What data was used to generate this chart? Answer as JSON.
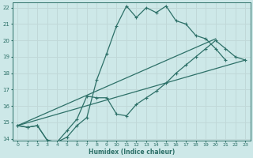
{
  "xlabel": "Humidex (Indice chaleur)",
  "bg_color": "#cde8e8",
  "grid_color": "#c0d8d8",
  "line_color": "#2d7068",
  "xlim": [
    -0.5,
    23.5
  ],
  "ylim": [
    13.9,
    22.3
  ],
  "xticks": [
    0,
    1,
    2,
    3,
    4,
    5,
    6,
    7,
    8,
    9,
    10,
    11,
    12,
    13,
    14,
    15,
    16,
    17,
    18,
    19,
    20,
    21,
    22,
    23
  ],
  "yticks": [
    14,
    15,
    16,
    17,
    18,
    19,
    20,
    21,
    22
  ],
  "curve1_x": [
    0,
    1,
    2,
    3,
    4,
    5,
    6,
    7,
    8,
    9,
    10,
    11,
    12,
    13,
    14,
    15,
    16,
    17,
    18,
    19,
    20,
    21
  ],
  "curve1_y": [
    14.8,
    14.7,
    14.8,
    13.9,
    13.8,
    14.1,
    14.8,
    15.3,
    17.6,
    19.2,
    20.9,
    22.1,
    21.4,
    22.0,
    21.7,
    22.1,
    21.2,
    21.0,
    20.3,
    20.1,
    19.5,
    18.8
  ],
  "curve2_x": [
    0,
    1,
    2,
    3,
    4,
    5,
    6,
    7,
    8,
    9,
    10,
    11,
    12,
    13,
    14,
    15,
    16,
    17,
    18,
    19,
    20,
    21,
    22,
    23
  ],
  "curve2_y": [
    14.8,
    14.7,
    14.8,
    13.9,
    13.8,
    14.5,
    15.2,
    16.6,
    16.5,
    16.5,
    15.5,
    15.4,
    16.1,
    16.5,
    16.9,
    17.4,
    18.0,
    18.5,
    19.0,
    19.5,
    20.0,
    19.5,
    19.0,
    18.8
  ],
  "line3_x": [
    0,
    20
  ],
  "line3_y": [
    14.8,
    20.1
  ],
  "line4_x": [
    0,
    23
  ],
  "line4_y": [
    14.8,
    18.8
  ]
}
